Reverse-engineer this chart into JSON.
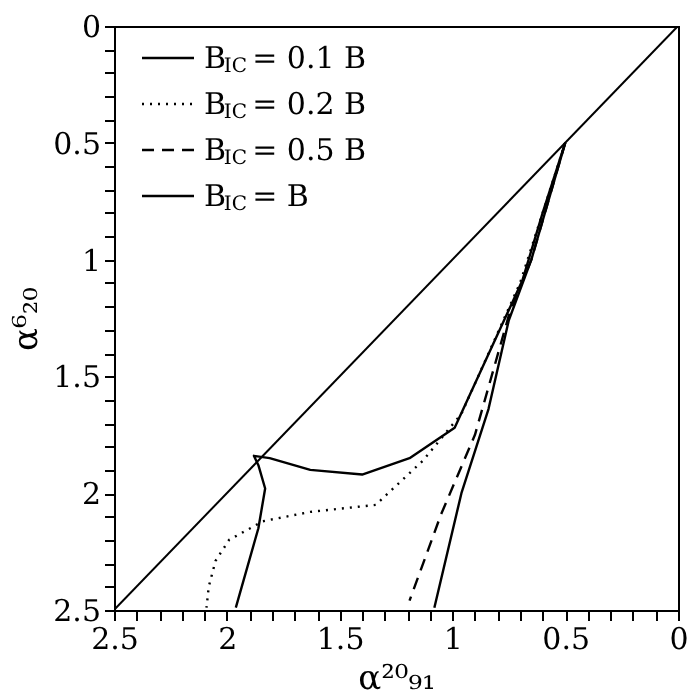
{
  "chart_data": {
    "type": "line",
    "xlabel": "α²⁰₉₁",
    "ylabel": "α⁶₂₀",
    "xlim": [
      2.5,
      0
    ],
    "ylim": [
      2.5,
      0
    ],
    "xticks": [
      2.5,
      {
        "value": 2.4,
        "label": null
      },
      {
        "value": 2.3,
        "label": null
      },
      {
        "value": 2.2,
        "label": null
      },
      {
        "value": 2.1,
        "label": null
      },
      2,
      {
        "value": 1.9,
        "label": null
      },
      {
        "value": 1.8,
        "label": null
      },
      {
        "value": 1.7,
        "label": null
      },
      {
        "value": 1.6,
        "label": null
      },
      1.5,
      {
        "value": 1.4,
        "label": null
      },
      {
        "value": 1.3,
        "label": null
      },
      {
        "value": 1.2,
        "label": null
      },
      {
        "value": 1.1,
        "label": null
      },
      1,
      {
        "value": 0.9,
        "label": null
      },
      {
        "value": 0.8,
        "label": null
      },
      {
        "value": 0.7,
        "label": null
      },
      {
        "value": 0.6,
        "label": null
      },
      0.5,
      {
        "value": 0.4,
        "label": null
      },
      {
        "value": 0.3,
        "label": null
      },
      {
        "value": 0.2,
        "label": null
      },
      {
        "value": 0.1,
        "label": null
      },
      0
    ],
    "yticks": [
      0,
      {
        "value": 0.1,
        "label": null
      },
      {
        "value": 0.2,
        "label": null
      },
      {
        "value": 0.3,
        "label": null
      },
      {
        "value": 0.4,
        "label": null
      },
      0.5,
      {
        "value": 0.6,
        "label": null
      },
      {
        "value": 0.7,
        "label": null
      },
      {
        "value": 0.8,
        "label": null
      },
      {
        "value": 0.9,
        "label": null
      },
      1,
      {
        "value": 1.1,
        "label": null
      },
      {
        "value": 1.2,
        "label": null
      },
      {
        "value": 1.3,
        "label": null
      },
      {
        "value": 1.4,
        "label": null
      },
      1.5,
      {
        "value": 1.6,
        "label": null
      },
      {
        "value": 1.7,
        "label": null
      },
      {
        "value": 1.8,
        "label": null
      },
      {
        "value": 1.9,
        "label": null
      },
      2,
      {
        "value": 2.1,
        "label": null
      },
      {
        "value": 2.2,
        "label": null
      },
      {
        "value": 2.3,
        "label": null
      },
      {
        "value": 2.4,
        "label": null
      },
      2.5
    ],
    "grid": false,
    "legend": "top left",
    "series": [
      {
        "name": "B$_{IC}$ = 0.1 B",
        "color": "#000000",
        "line_style": "solid",
        "x": [
          0.5,
          0.6,
          0.69,
          0.99,
          1.19,
          1.4,
          1.63,
          1.81,
          1.88,
          1.86,
          1.83,
          1.86,
          1.96
        ],
        "values": [
          0.5,
          0.8,
          1.09,
          1.72,
          1.85,
          1.92,
          1.9,
          1.85,
          1.84,
          1.88,
          1.98,
          2.15,
          2.49
        ]
      },
      {
        "name": "B$_{IC}$ = 0.2 B",
        "color": "#000000",
        "line_style": "dotted",
        "x": [
          0.5,
          0.6,
          0.7,
          0.96,
          1.13,
          1.34,
          1.63,
          1.84,
          1.99,
          2.05,
          2.08,
          2.09
        ],
        "values": [
          0.5,
          0.8,
          1.1,
          1.66,
          1.86,
          2.05,
          2.08,
          2.12,
          2.2,
          2.29,
          2.4,
          2.49
        ]
      },
      {
        "name": "B$_{IC}$ = 0.5 B",
        "color": "#000000",
        "line_style": "dashed",
        "x": [
          0.5,
          0.65,
          0.75,
          0.9,
          1.05,
          1.19
        ],
        "values": [
          0.5,
          1.0,
          1.24,
          1.75,
          2.09,
          2.46
        ]
      },
      {
        "name": "B$_{IC}$ = B",
        "color": "#000000",
        "line_style": "solid",
        "x": [
          0.5,
          0.65,
          0.75,
          0.84,
          0.96,
          1.08
        ],
        "values": [
          0.5,
          1.0,
          1.26,
          1.64,
          2.0,
          2.49
        ]
      },
      {
        "color": "#000000",
        "line_style": "solid",
        "x": [
          0,
          2.5
        ],
        "values": [
          0,
          2.5
        ]
      }
    ]
  }
}
